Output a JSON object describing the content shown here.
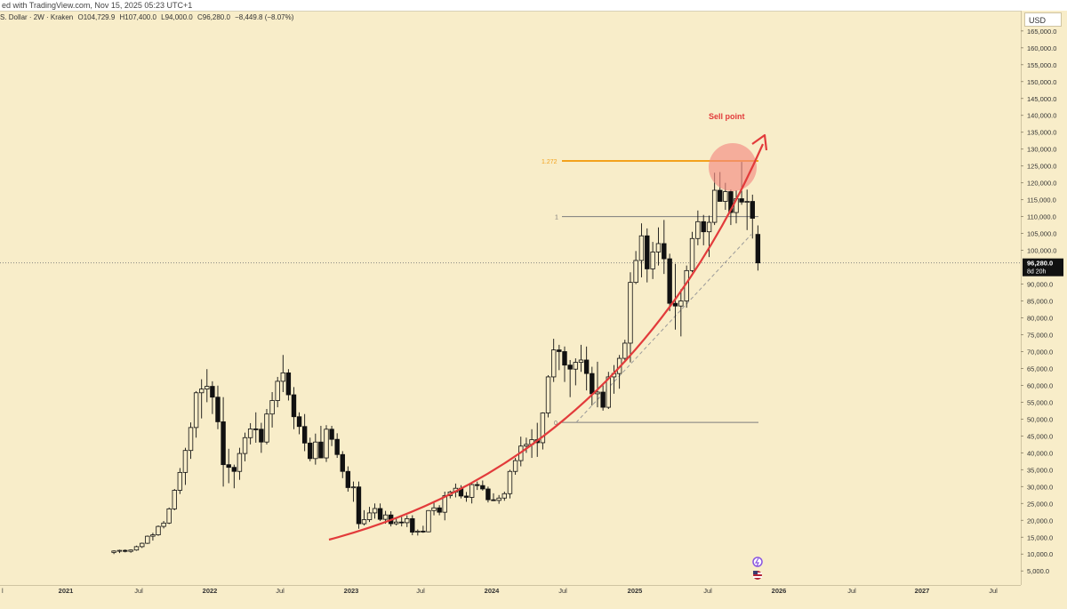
{
  "header": {
    "text": "ed with TradingView.com,  Nov 15, 2025 05:23 UTC+1"
  },
  "symbol_info": {
    "name": "S. Dollar · 2W · Kraken",
    "open": "O104,729.9",
    "high": "H107,400.0",
    "low": "L94,000.0",
    "close": "C96,280.0",
    "change": "−8,449.8 (−8.07%)"
  },
  "currency": "USD",
  "price_label": {
    "price": "96,280.0",
    "countdown": "8d 20h"
  },
  "colors": {
    "background": "#f8edc9",
    "candle": "#111111",
    "arc": "#e23b3b",
    "fib_1272": "#f3a21c",
    "fib_line": "#7d7d7d",
    "circle": "#f28b82"
  },
  "chart_data": {
    "type": "candlestick",
    "interval": "2W",
    "y_axis": {
      "min": 0,
      "max": 165000,
      "ticks": [
        "5,000.0",
        "10,000.0",
        "15,000.0",
        "20,000.0",
        "25,000.0",
        "30,000.0",
        "35,000.0",
        "40,000.0",
        "45,000.0",
        "50,000.0",
        "55,000.0",
        "60,000.0",
        "65,000.0",
        "70,000.0",
        "75,000.0",
        "80,000.0",
        "85,000.0",
        "90,000.0",
        "100,000.0",
        "105,000.0",
        "110,000.0",
        "115,000.0",
        "120,000.0",
        "125,000.0",
        "130,000.0",
        "135,000.0",
        "140,000.0",
        "145,000.0",
        "150,000.0",
        "155,000.0",
        "160,000.0",
        "165,000.0"
      ],
      "tick_values": [
        5000,
        10000,
        15000,
        20000,
        25000,
        30000,
        35000,
        40000,
        45000,
        50000,
        55000,
        60000,
        65000,
        70000,
        75000,
        80000,
        85000,
        90000,
        100000,
        105000,
        110000,
        115000,
        120000,
        125000,
        130000,
        135000,
        140000,
        145000,
        150000,
        155000,
        160000,
        165000
      ]
    },
    "x_axis": {
      "labels": [
        "l",
        "2021",
        "Jul",
        "2022",
        "Jul",
        "2023",
        "Jul",
        "2024",
        "Jul",
        "2025",
        "Jul",
        "2026",
        "Jul",
        "2027",
        "Jul"
      ],
      "dates": [
        "2020-07-01",
        "2021-01-01",
        "2021-07-01",
        "2022-01-01",
        "2022-07-01",
        "2023-01-01",
        "2023-07-01",
        "2024-01-01",
        "2024-07-01",
        "2025-01-01",
        "2025-07-01",
        "2026-01-01",
        "2026-07-01",
        "2027-01-01",
        "2027-07-01"
      ]
    },
    "candles": [
      [
        10500,
        11100,
        10000,
        10900
      ],
      [
        10900,
        11300,
        10300,
        11100
      ],
      [
        11100,
        11400,
        10500,
        10800
      ],
      [
        10800,
        11400,
        10400,
        11200
      ],
      [
        11200,
        12500,
        11000,
        12200
      ],
      [
        12200,
        13400,
        11800,
        13200
      ],
      [
        13200,
        15500,
        13000,
        15300
      ],
      [
        15300,
        16300,
        14000,
        15700
      ],
      [
        15700,
        18500,
        15400,
        18200
      ],
      [
        18200,
        19800,
        17600,
        19200
      ],
      [
        19200,
        23800,
        18900,
        23400
      ],
      [
        23400,
        29300,
        23000,
        28900
      ],
      [
        28900,
        35500,
        27800,
        34200
      ],
      [
        34200,
        41500,
        30500,
        40700
      ],
      [
        40700,
        49000,
        38200,
        47500
      ],
      [
        47500,
        58300,
        44500,
        57800
      ],
      [
        57800,
        61800,
        50200,
        58900
      ],
      [
        58900,
        64800,
        55000,
        59700
      ],
      [
        59700,
        61200,
        51500,
        56500
      ],
      [
        56500,
        59900,
        47000,
        49200
      ],
      [
        49200,
        56500,
        30000,
        36500
      ],
      [
        36500,
        41200,
        31000,
        35700
      ],
      [
        35700,
        36500,
        29500,
        34500
      ],
      [
        34500,
        41500,
        32000,
        39800
      ],
      [
        39800,
        46000,
        37500,
        44500
      ],
      [
        44500,
        48800,
        42500,
        47100
      ],
      [
        47100,
        52000,
        43000,
        47000
      ],
      [
        47000,
        48900,
        40000,
        43200
      ],
      [
        43200,
        53000,
        42500,
        51500
      ],
      [
        51500,
        58000,
        47500,
        55500
      ],
      [
        55500,
        62500,
        53500,
        61200
      ],
      [
        61200,
        69000,
        58000,
        63700
      ],
      [
        63700,
        64800,
        55500,
        57200
      ],
      [
        57200,
        59500,
        47000,
        50700
      ],
      [
        50700,
        52000,
        45500,
        47800
      ],
      [
        47800,
        51500,
        40500,
        42900
      ],
      [
        42900,
        44500,
        37500,
        38300
      ],
      [
        38300,
        45700,
        36500,
        43200
      ],
      [
        43200,
        48000,
        38500,
        38500
      ],
      [
        38500,
        48200,
        37300,
        47000
      ],
      [
        47000,
        48000,
        42000,
        44000
      ],
      [
        44000,
        45800,
        38500,
        39500
      ],
      [
        39500,
        40500,
        32500,
        34500
      ],
      [
        34500,
        36000,
        28500,
        29700
      ],
      [
        29700,
        31500,
        25500,
        29900
      ],
      [
        29900,
        31500,
        17500,
        19000
      ],
      [
        19000,
        23000,
        18500,
        20200
      ],
      [
        20200,
        24000,
        19500,
        22200
      ],
      [
        22200,
        25000,
        20500,
        23500
      ],
      [
        23500,
        25000,
        19800,
        20300
      ],
      [
        20300,
        22800,
        19000,
        21600
      ],
      [
        21600,
        22700,
        18200,
        19000
      ],
      [
        19000,
        20500,
        18500,
        19500
      ],
      [
        19500,
        21000,
        18200,
        19300
      ],
      [
        19300,
        21500,
        18000,
        20500
      ],
      [
        20500,
        21500,
        15600,
        16500
      ],
      [
        16500,
        17300,
        15500,
        16800
      ],
      [
        16800,
        18400,
        16300,
        16600
      ],
      [
        16600,
        23000,
        16500,
        22900
      ],
      [
        22900,
        25200,
        21500,
        23700
      ],
      [
        23700,
        24500,
        21500,
        22400
      ],
      [
        22400,
        28500,
        20000,
        27300
      ],
      [
        27300,
        28800,
        26500,
        28400
      ],
      [
        28400,
        30900,
        26800,
        29500
      ],
      [
        29500,
        30400,
        26500,
        27200
      ],
      [
        27200,
        28400,
        25500,
        26800
      ],
      [
        26800,
        31000,
        25000,
        30600
      ],
      [
        30600,
        31500,
        29000,
        30300
      ],
      [
        30300,
        31800,
        28800,
        29300
      ],
      [
        29300,
        30000,
        25300,
        26100
      ],
      [
        26100,
        28000,
        25700,
        25900
      ],
      [
        25900,
        27500,
        24900,
        26600
      ],
      [
        26600,
        28500,
        25800,
        27900
      ],
      [
        27900,
        35000,
        26500,
        34500
      ],
      [
        34500,
        38500,
        33500,
        37700
      ],
      [
        37700,
        44800,
        36000,
        42000
      ],
      [
        42000,
        44500,
        40000,
        42500
      ],
      [
        42500,
        47000,
        38500,
        43900
      ],
      [
        43900,
        48900,
        38800,
        43000
      ],
      [
        43000,
        52000,
        41000,
        51800
      ],
      [
        51800,
        63000,
        50500,
        62500
      ],
      [
        62500,
        73800,
        61000,
        70500
      ],
      [
        70500,
        72000,
        64500,
        70000
      ],
      [
        70000,
        71500,
        61000,
        66000
      ],
      [
        66000,
        67500,
        56500,
        64800
      ],
      [
        64800,
        68000,
        60000,
        66800
      ],
      [
        66800,
        72000,
        64000,
        67500
      ],
      [
        67500,
        71500,
        58500,
        63500
      ],
      [
        63500,
        65500,
        54000,
        57500
      ],
      [
        57500,
        67000,
        53500,
        58000
      ],
      [
        58000,
        60000,
        52500,
        53500
      ],
      [
        53500,
        64000,
        53000,
        62500
      ],
      [
        62500,
        66000,
        57500,
        63500
      ],
      [
        63500,
        69000,
        59000,
        68000
      ],
      [
        68000,
        73500,
        66800,
        72500
      ],
      [
        72500,
        93500,
        66800,
        90500
      ],
      [
        90500,
        99800,
        90000,
        97000
      ],
      [
        97000,
        108000,
        92000,
        104300
      ],
      [
        104300,
        106500,
        90500,
        94500
      ],
      [
        94500,
        102500,
        91500,
        99500
      ],
      [
        99500,
        106800,
        95500,
        102000
      ],
      [
        102000,
        109000,
        93000,
        97500
      ],
      [
        97500,
        99000,
        82000,
        84300
      ],
      [
        84300,
        96000,
        76500,
        83500
      ],
      [
        83500,
        88500,
        74500,
        85000
      ],
      [
        85000,
        95500,
        83000,
        94000
      ],
      [
        94000,
        105500,
        93500,
        103500
      ],
      [
        103500,
        111800,
        101500,
        108500
      ],
      [
        108500,
        110500,
        101500,
        105500
      ],
      [
        105500,
        110300,
        98000,
        108300
      ],
      [
        108300,
        123000,
        107500,
        117800
      ],
      [
        117800,
        123200,
        114500,
        114500
      ],
      [
        114500,
        120000,
        112000,
        117400
      ],
      [
        117400,
        118000,
        107500,
        111200
      ],
      [
        111200,
        117800,
        108000,
        115300
      ],
      [
        115300,
        126200,
        113500,
        114300
      ],
      [
        114300,
        118000,
        106000,
        114500
      ],
      [
        114500,
        116500,
        103500,
        109500
      ],
      [
        104729.9,
        107400,
        94000,
        96280
      ]
    ],
    "annotations": {
      "sell_label": "Sell point",
      "fib_label_1272": "1.272",
      "fib_label_1": "1",
      "fib_label_0": "0",
      "fib_1272_price": 126500,
      "fib_1_price": 110000,
      "fib_0_price": 49000
    },
    "last_price": 96280
  },
  "time_axis_icons": [
    "lightning-icon",
    "us-flag-icon"
  ]
}
